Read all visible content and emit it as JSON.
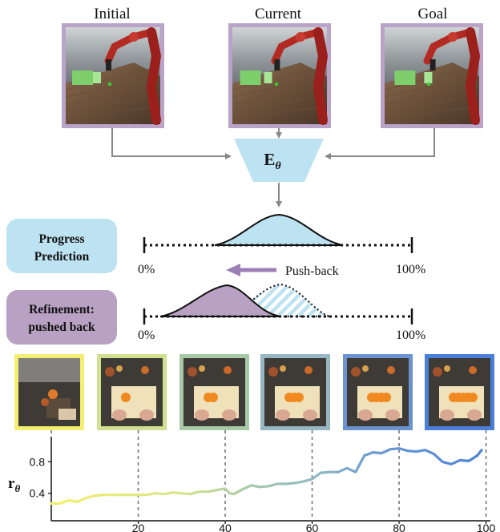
{
  "top_images": [
    {
      "label": "Initial"
    },
    {
      "label": "Current"
    },
    {
      "label": "Goal"
    }
  ],
  "encoder": {
    "label_main": "E",
    "label_sub": "θ"
  },
  "progress_box": {
    "line1": "Progress",
    "line2": "Prediction"
  },
  "refine_box": {
    "line1": "Refinement:",
    "line2": "pushed back"
  },
  "axis_labels": {
    "start": "0%",
    "end": "100%"
  },
  "pushback_label": "Push-back",
  "colors": {
    "frame_purple": "#b9a3c8",
    "encoder_blue": "#bde3f2",
    "progress_fill": "#bde3f2",
    "refine_fill": "#b8a1c3",
    "arrow_purple": "#9d7fb8"
  },
  "frame_colors": [
    "#f2ef72",
    "#cfe08e",
    "#a8c9a6",
    "#97b6c4",
    "#6a93cf",
    "#4a7fd7"
  ],
  "chart_data": {
    "type": "line",
    "ylabel_main": "r",
    "ylabel_sub": "θ",
    "xticks": [
      20,
      40,
      60,
      80,
      100
    ],
    "yticks": [
      0.4,
      0.8
    ],
    "xlim": [
      0,
      101
    ],
    "ylim": [
      0.05,
      1.12
    ],
    "frame_markers": [
      20,
      40,
      60,
      80,
      100
    ],
    "x": [
      0,
      2,
      4,
      6,
      8,
      10,
      12,
      14,
      16,
      18,
      20,
      22,
      24,
      26,
      28,
      30,
      32,
      34,
      36,
      38,
      40,
      41,
      42,
      44,
      46,
      48,
      50,
      52,
      54,
      56,
      58,
      60,
      62,
      64,
      66,
      68,
      70,
      72,
      74,
      76,
      78,
      80,
      82,
      84,
      86,
      88,
      90,
      92,
      94,
      96,
      98,
      99
    ],
    "y": [
      0.27,
      0.27,
      0.31,
      0.29,
      0.34,
      0.37,
      0.38,
      0.38,
      0.38,
      0.38,
      0.38,
      0.38,
      0.4,
      0.39,
      0.41,
      0.4,
      0.39,
      0.42,
      0.42,
      0.44,
      0.46,
      0.4,
      0.39,
      0.45,
      0.5,
      0.48,
      0.49,
      0.52,
      0.52,
      0.53,
      0.55,
      0.58,
      0.66,
      0.67,
      0.67,
      0.72,
      0.67,
      0.88,
      0.92,
      0.91,
      0.96,
      0.97,
      0.94,
      0.93,
      0.95,
      0.9,
      0.8,
      0.77,
      0.82,
      0.81,
      0.88,
      0.95
    ]
  }
}
